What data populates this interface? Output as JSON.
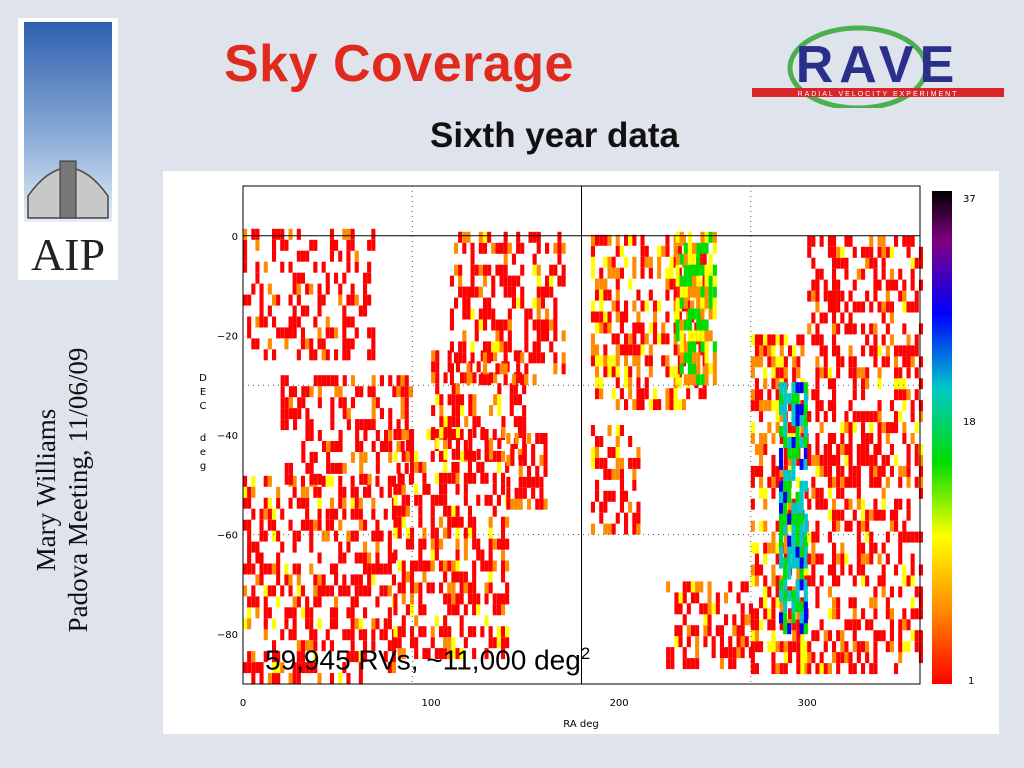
{
  "slide": {
    "title": "Sky Coverage",
    "subtitle": "Sixth year data",
    "side_caption": [
      "Mary Williams",
      "Padova Meeting, 11/06/09"
    ],
    "annotation_main": "59,945 RVs, ~11,000 deg",
    "annotation_sup": "2"
  },
  "logos": {
    "left": {
      "text": "AIP",
      "icon": "observatory-dome-icon"
    },
    "right": {
      "text": "RAVE",
      "subtext": "RADIAL VELOCITY EXPERIMENT"
    }
  },
  "colors": {
    "title": "#e12a1e",
    "background": "#dfe3ec",
    "logo_navy": "#2b2f8c",
    "logo_red": "#d8262b"
  },
  "chart_data": {
    "type": "heatmap",
    "title": "",
    "xlabel": "RA deg",
    "ylabel": "DEC deg",
    "xlim": [
      0,
      360
    ],
    "ylim": [
      -90,
      10
    ],
    "x_ticks": [
      "0",
      "100",
      "200",
      "300"
    ],
    "y_ticks": [
      "0",
      "−20",
      "−40",
      "−60",
      "−80"
    ],
    "colorbar": {
      "min": 1,
      "max": 37,
      "ticks": [
        "37",
        "18",
        "1"
      ]
    },
    "reference_lines": {
      "solid_ra": 180,
      "solid_dec": 0,
      "dotted_ra": [
        90,
        270
      ],
      "dotted_dec": [
        -30,
        -60
      ]
    },
    "coverage_note": "Dense red/yellow patches cover the southern sky from DEC 0 to about −88; empty curved region near RA 200–280; Galactic plane band near RA 280–300 shows green/blue densities",
    "patches": [
      {
        "ra": [
          0,
          80
        ],
        "dec": [
          -90,
          -50
        ],
        "density": 3
      },
      {
        "ra": [
          80,
          140
        ],
        "dec": [
          -85,
          -40
        ],
        "density": 3
      },
      {
        "ra": [
          20,
          90
        ],
        "dec": [
          -50,
          -30
        ],
        "density": 2
      },
      {
        "ra": [
          100,
          150
        ],
        "dec": [
          -45,
          -25
        ],
        "density": 3
      },
      {
        "ra": [
          110,
          170
        ],
        "dec": [
          -30,
          0
        ],
        "density": 3
      },
      {
        "ra": [
          185,
          245
        ],
        "dec": [
          -35,
          0
        ],
        "density": 5
      },
      {
        "ra": [
          230,
          250
        ],
        "dec": [
          -30,
          0
        ],
        "density": 10
      },
      {
        "ra": [
          185,
          210
        ],
        "dec": [
          -60,
          -40
        ],
        "density": 3
      },
      {
        "ra": [
          225,
          270
        ],
        "dec": [
          -87,
          -70
        ],
        "density": 3
      },
      {
        "ra": [
          270,
          300
        ],
        "dec": [
          -88,
          -20
        ],
        "density": 6
      },
      {
        "ra": [
          285,
          300
        ],
        "dec": [
          -80,
          -30
        ],
        "density": 14
      },
      {
        "ra": [
          300,
          360
        ],
        "dec": [
          -88,
          0
        ],
        "density": 3
      },
      {
        "ra": [
          0,
          70
        ],
        "dec": [
          -25,
          0
        ],
        "density": 1
      },
      {
        "ra": [
          140,
          160
        ],
        "dec": [
          -55,
          -40
        ],
        "density": 2
      }
    ]
  }
}
